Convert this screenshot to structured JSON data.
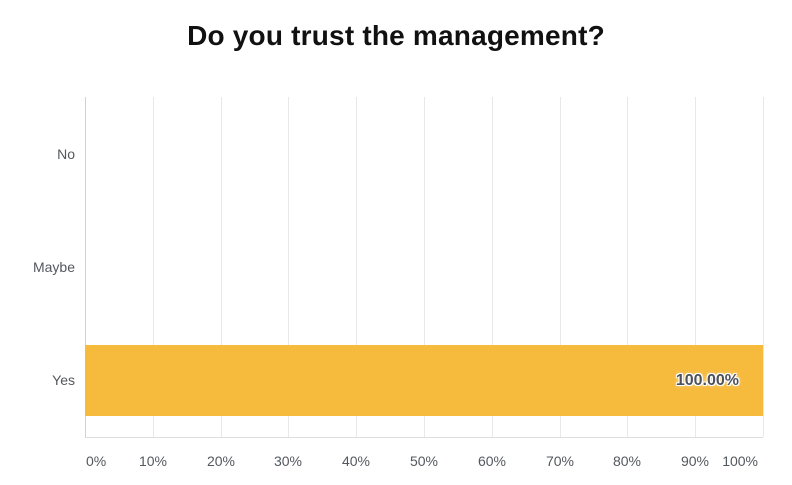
{
  "chart_data": {
    "type": "bar",
    "orientation": "horizontal",
    "title": "Do you trust the management?",
    "categories": [
      "No",
      "Maybe",
      "Yes"
    ],
    "values": [
      0,
      0,
      100
    ],
    "bar_labels": [
      "",
      "",
      "100.00%"
    ],
    "x_tick_labels": [
      "0%",
      "10%",
      "20%",
      "30%",
      "40%",
      "50%",
      "60%",
      "70%",
      "80%",
      "90%",
      "100%"
    ],
    "xlim": [
      0,
      100
    ],
    "grid": "vertical-only",
    "legend": "none",
    "colors": {
      "bar": "#f6ba3d",
      "axis_text": "#53585f",
      "value_label_text": "#4d525a",
      "gridline": "#e8e8e8",
      "axis_line": "#d2d2d2",
      "plot_border": "#dddddd",
      "title_text": "#111111",
      "background": "#ffffff"
    }
  }
}
